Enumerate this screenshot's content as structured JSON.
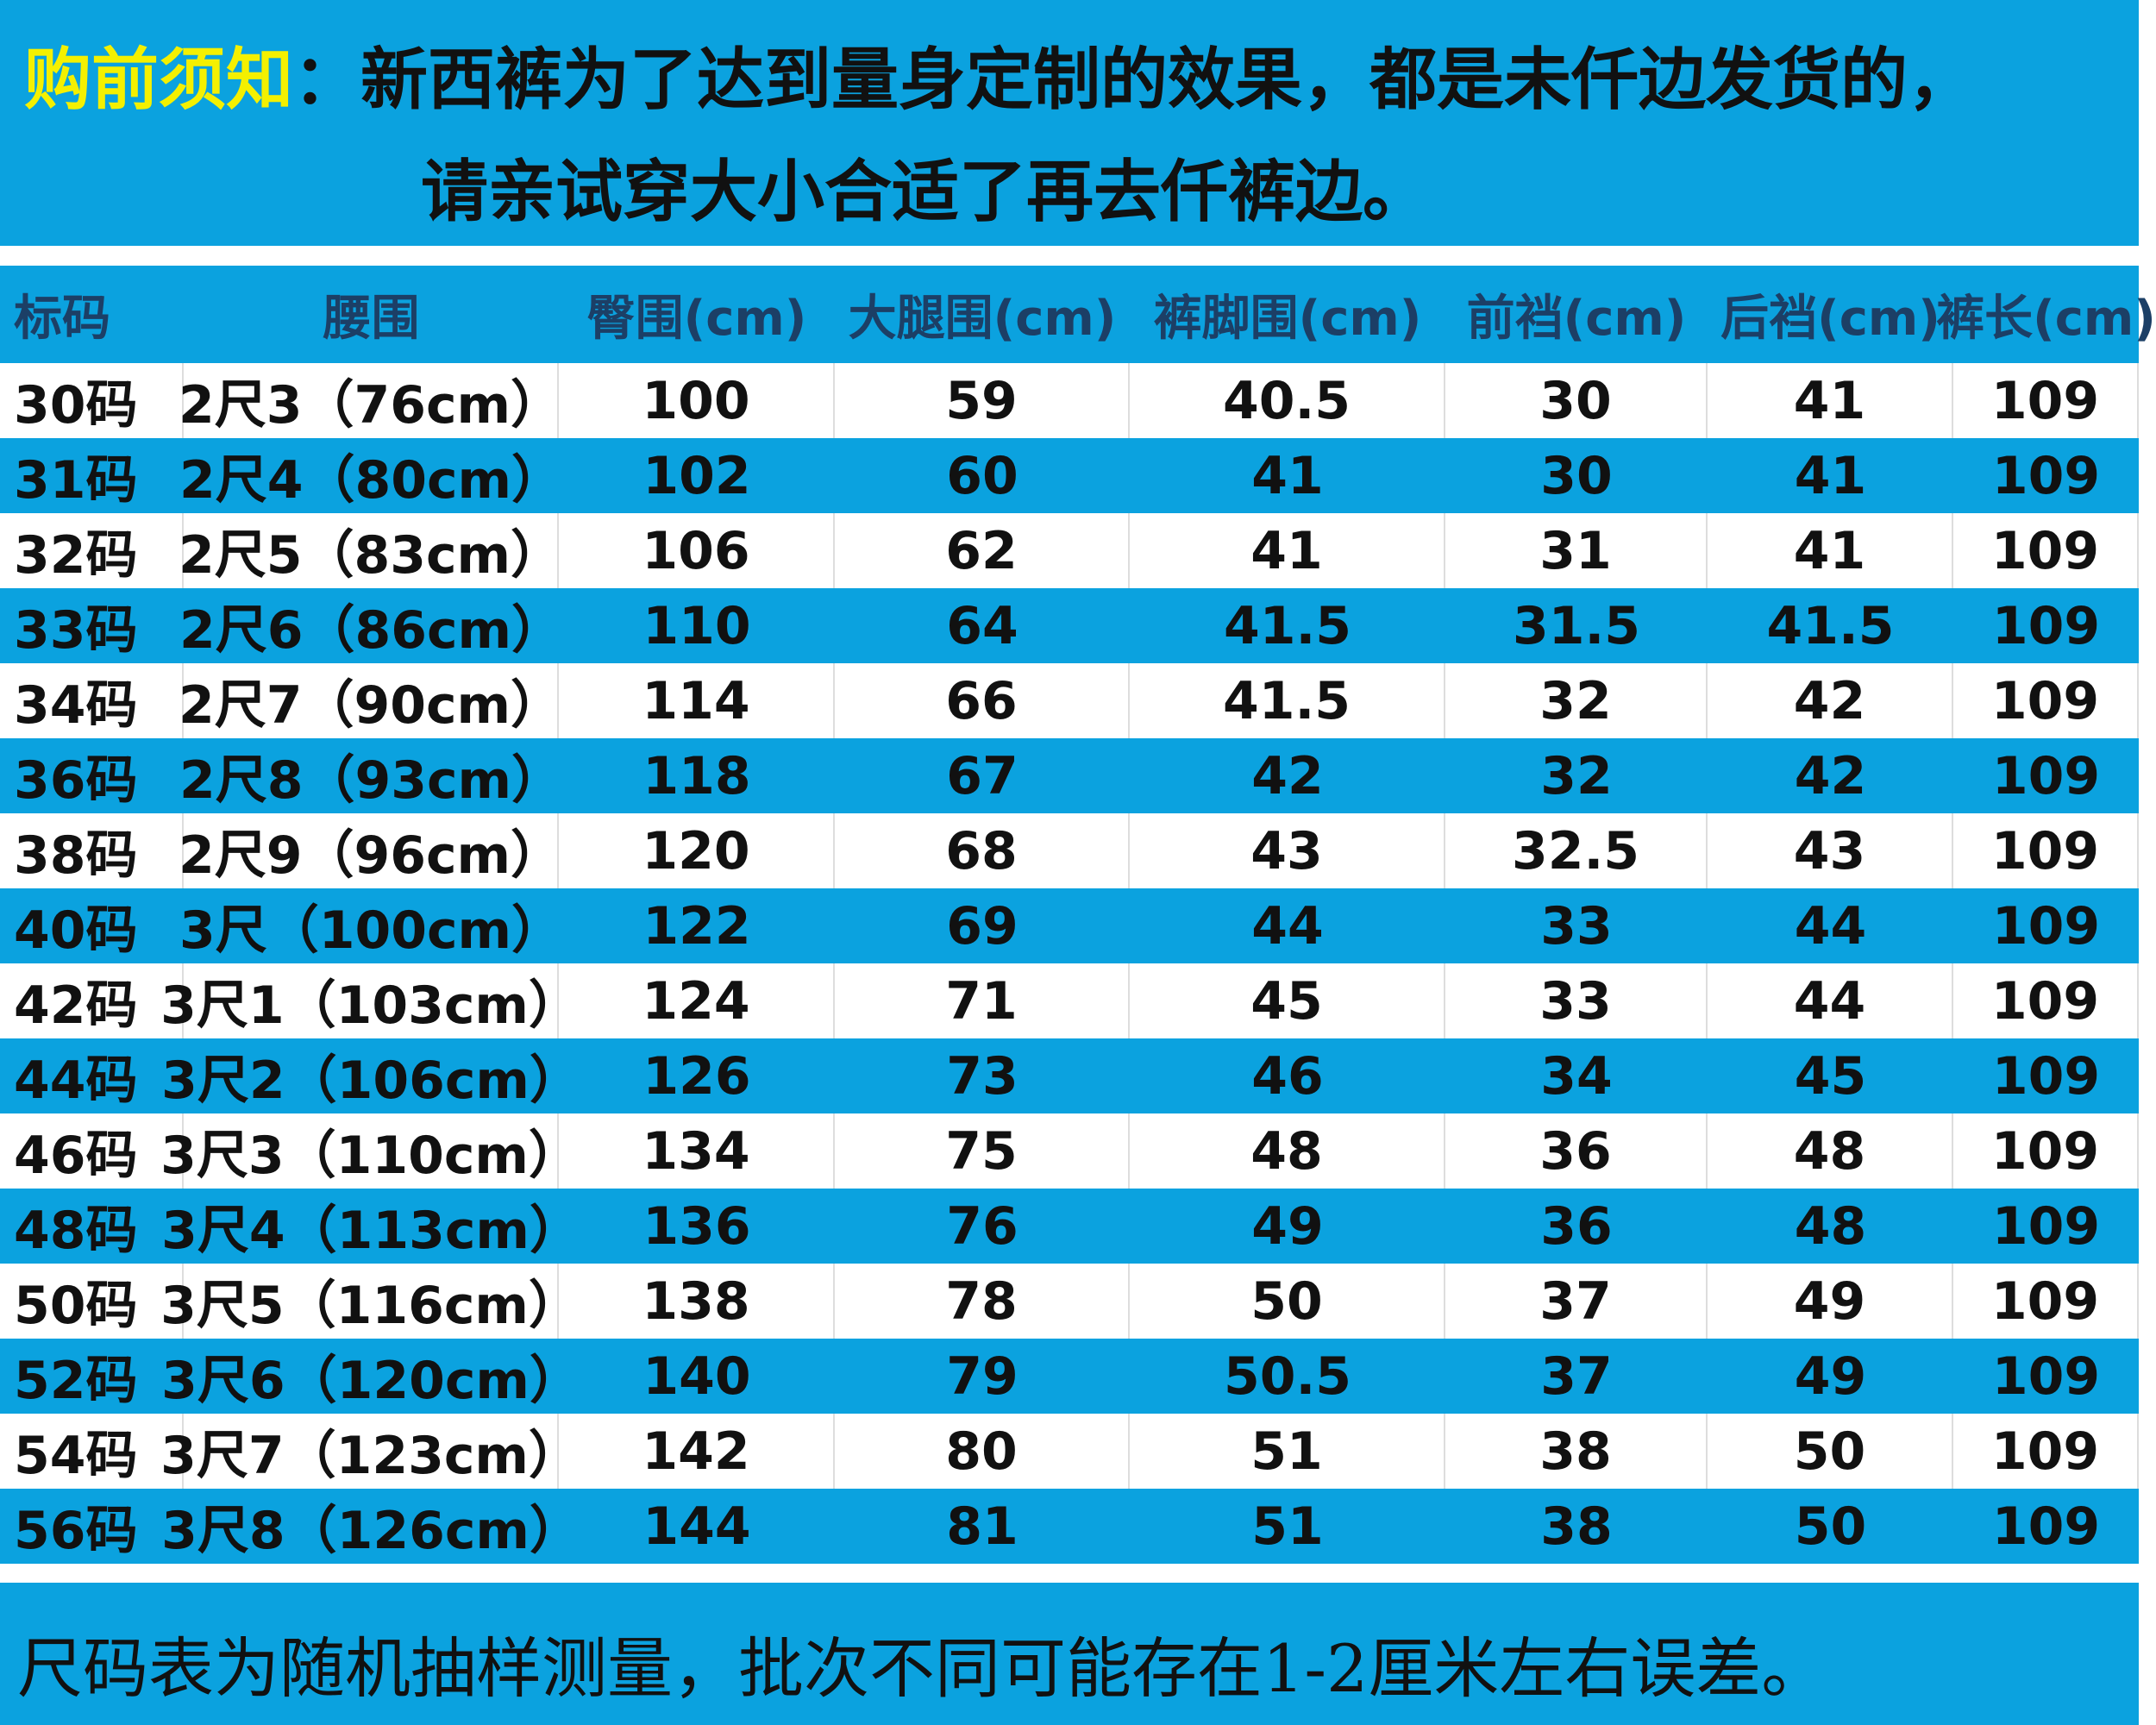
{
  "notice": {
    "label": "购前须知",
    "line1": "：新西裤为了达到量身定制的效果，都是未仟边发货的，",
    "line2": "请亲试穿大小合适了再去仟裤边。"
  },
  "table": {
    "columns": [
      "标码",
      "腰围",
      "臀围(cm)",
      "大腿围(cm)",
      "裤脚围(cm)",
      "前裆(cm)",
      "后裆(cm)",
      "裤长(cm)"
    ],
    "rows": [
      [
        "30码",
        "2尺3（76cm）",
        "100",
        "59",
        "40.5",
        "30",
        "41",
        "109"
      ],
      [
        "31码",
        "2尺4（80cm）",
        "102",
        "60",
        "41",
        "30",
        "41",
        "109"
      ],
      [
        "32码",
        "2尺5（83cm）",
        "106",
        "62",
        "41",
        "31",
        "41",
        "109"
      ],
      [
        "33码",
        "2尺6（86cm）",
        "110",
        "64",
        "41.5",
        "31.5",
        "41.5",
        "109"
      ],
      [
        "34码",
        "2尺7（90cm）",
        "114",
        "66",
        "41.5",
        "32",
        "42",
        "109"
      ],
      [
        "36码",
        "2尺8（93cm）",
        "118",
        "67",
        "42",
        "32",
        "42",
        "109"
      ],
      [
        "38码",
        "2尺9（96cm）",
        "120",
        "68",
        "43",
        "32.5",
        "43",
        "109"
      ],
      [
        "40码",
        "3尺（100cm）",
        "122",
        "69",
        "44",
        "33",
        "44",
        "109"
      ],
      [
        "42码",
        "3尺1（103cm）",
        "124",
        "71",
        "45",
        "33",
        "44",
        "109"
      ],
      [
        "44码",
        "3尺2（106cm）",
        "126",
        "73",
        "46",
        "34",
        "45",
        "109"
      ],
      [
        "46码",
        "3尺3（110cm）",
        "134",
        "75",
        "48",
        "36",
        "48",
        "109"
      ],
      [
        "48码",
        "3尺4（113cm）",
        "136",
        "76",
        "49",
        "36",
        "48",
        "109"
      ],
      [
        "50码",
        "3尺5（116cm）",
        "138",
        "78",
        "50",
        "37",
        "49",
        "109"
      ],
      [
        "52码",
        "3尺6（120cm）",
        "140",
        "79",
        "50.5",
        "37",
        "49",
        "109"
      ],
      [
        "54码",
        "3尺7（123cm）",
        "142",
        "80",
        "51",
        "38",
        "50",
        "109"
      ],
      [
        "56码",
        "3尺8（126cm）",
        "144",
        "81",
        "51",
        "38",
        "50",
        "109"
      ]
    ]
  },
  "footer": "尺码表为随机抽样测量，批次不同可能存在1-2厘米左右误差。"
}
